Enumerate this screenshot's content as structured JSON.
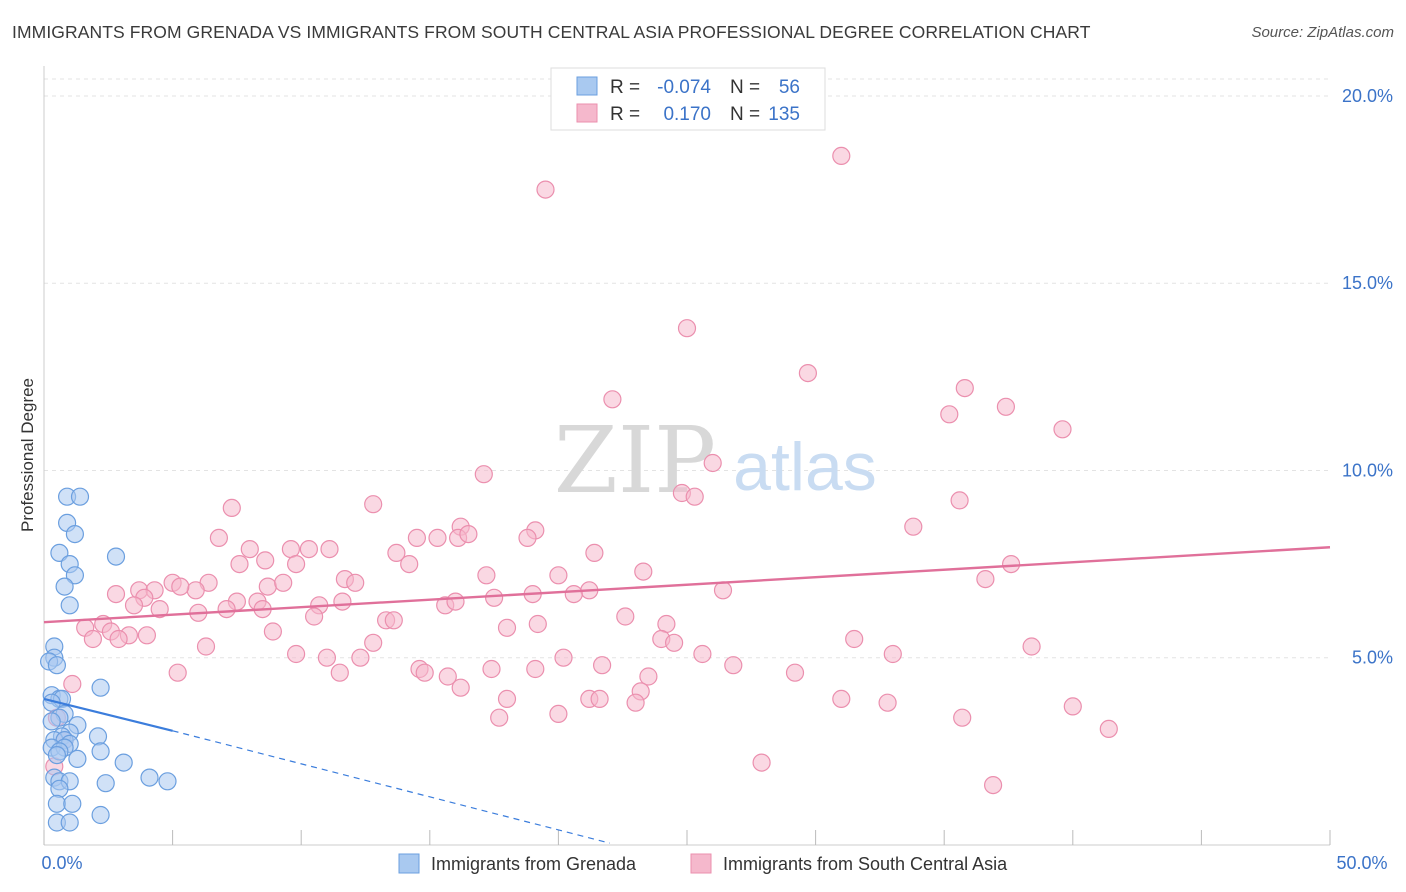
{
  "header": {
    "title": "IMMIGRANTS FROM GRENADA VS IMMIGRANTS FROM SOUTH CENTRAL ASIA PROFESSIONAL DEGREE CORRELATION CHART",
    "source": "Source: ZipAtlas.com"
  },
  "watermark": {
    "zip": "ZIP",
    "atlas": "atlas"
  },
  "legend_box": {
    "rows": [
      {
        "r_label": "R =",
        "r_value": "-0.074",
        "n_label": "N =",
        "n_value": "56"
      },
      {
        "r_label": "R =",
        "r_value": "0.170",
        "n_label": "N =",
        "n_value": "135"
      }
    ]
  },
  "bottom_legend": {
    "items": [
      {
        "label": "Immigrants from Grenada"
      },
      {
        "label": "Immigrants from South Central Asia"
      }
    ]
  },
  "colors": {
    "blue_fill": "#a9c9f0",
    "blue_stroke": "#6b9fdf",
    "blue_line": "#3b7ddc",
    "pink_fill": "#f5b8cc",
    "pink_stroke": "#eb8fae",
    "pink_line": "#e0709a",
    "axis_value": "#3b73c8",
    "grid": "#e3e3e3"
  },
  "chart_data": {
    "type": "scatter",
    "title": "IMMIGRANTS FROM GRENADA VS IMMIGRANTS FROM SOUTH CENTRAL ASIA PROFESSIONAL DEGREE CORRELATION CHART",
    "xlabel": "",
    "ylabel": "Professional Degree",
    "xlim": [
      0,
      50
    ],
    "ylim": [
      0,
      20.8
    ],
    "x_tick_labels": [
      "0.0%",
      "50.0%"
    ],
    "y_ticks": [
      5,
      10,
      15,
      20
    ],
    "y_tick_labels": [
      "5.0%",
      "10.0%",
      "15.0%",
      "20.0%"
    ],
    "grid": true,
    "legend_position": "top-center",
    "series": [
      {
        "name": "Immigrants from Grenada",
        "R": -0.074,
        "N": 56,
        "trend": {
          "x0": 0,
          "y0": 3.9,
          "x1": 5.0,
          "y1": 3.05,
          "dashed_to_x": 22.0,
          "dashed_to_y": 0.05
        },
        "points": [
          [
            0.9,
            9.3
          ],
          [
            1.4,
            9.3
          ],
          [
            0.9,
            8.6
          ],
          [
            1.2,
            8.3
          ],
          [
            0.6,
            7.8
          ],
          [
            2.8,
            7.7
          ],
          [
            1.0,
            7.5
          ],
          [
            1.2,
            7.2
          ],
          [
            0.8,
            6.9
          ],
          [
            1.0,
            6.4
          ],
          [
            0.4,
            5.3
          ],
          [
            0.4,
            5.0
          ],
          [
            0.2,
            4.9
          ],
          [
            0.5,
            4.8
          ],
          [
            2.2,
            4.2
          ],
          [
            0.3,
            4.0
          ],
          [
            0.6,
            3.9
          ],
          [
            0.7,
            3.9
          ],
          [
            0.3,
            3.8
          ],
          [
            0.8,
            3.5
          ],
          [
            0.6,
            3.4
          ],
          [
            0.3,
            3.3
          ],
          [
            1.3,
            3.2
          ],
          [
            1.0,
            3.0
          ],
          [
            2.1,
            2.9
          ],
          [
            0.7,
            2.9
          ],
          [
            0.4,
            2.8
          ],
          [
            0.8,
            2.8
          ],
          [
            1.0,
            2.7
          ],
          [
            0.3,
            2.6
          ],
          [
            0.8,
            2.6
          ],
          [
            0.6,
            2.5
          ],
          [
            2.2,
            2.5
          ],
          [
            0.5,
            2.4
          ],
          [
            1.3,
            2.3
          ],
          [
            3.1,
            2.2
          ],
          [
            0.4,
            1.8
          ],
          [
            0.6,
            1.7
          ],
          [
            1.0,
            1.7
          ],
          [
            4.1,
            1.8
          ],
          [
            4.8,
            1.7
          ],
          [
            2.4,
            1.65
          ],
          [
            0.6,
            1.5
          ],
          [
            0.5,
            1.1
          ],
          [
            1.1,
            1.1
          ],
          [
            2.2,
            0.8
          ],
          [
            0.5,
            0.6
          ],
          [
            1.0,
            0.6
          ]
        ]
      },
      {
        "name": "Immigrants from South Central Asia",
        "R": 0.17,
        "N": 135,
        "trend": {
          "x0": 0,
          "y0": 5.95,
          "x1": 50,
          "y1": 7.95
        },
        "points": [
          [
            31.0,
            18.4
          ],
          [
            19.5,
            17.5
          ],
          [
            25.0,
            13.8
          ],
          [
            29.7,
            12.6
          ],
          [
            35.8,
            12.2
          ],
          [
            22.1,
            11.9
          ],
          [
            37.4,
            11.7
          ],
          [
            35.2,
            11.5
          ],
          [
            39.6,
            11.1
          ],
          [
            26.0,
            10.2
          ],
          [
            17.1,
            9.9
          ],
          [
            24.8,
            9.4
          ],
          [
            25.3,
            9.3
          ],
          [
            35.6,
            9.2
          ],
          [
            7.3,
            9.0
          ],
          [
            12.8,
            9.1
          ],
          [
            16.2,
            8.5
          ],
          [
            33.8,
            8.5
          ],
          [
            19.1,
            8.4
          ],
          [
            6.8,
            8.2
          ],
          [
            14.5,
            8.2
          ],
          [
            15.3,
            8.2
          ],
          [
            16.1,
            8.2
          ],
          [
            18.8,
            8.2
          ],
          [
            16.5,
            8.3
          ],
          [
            8.0,
            7.9
          ],
          [
            9.6,
            7.9
          ],
          [
            10.3,
            7.9
          ],
          [
            11.1,
            7.9
          ],
          [
            13.7,
            7.8
          ],
          [
            21.4,
            7.8
          ],
          [
            7.6,
            7.5
          ],
          [
            8.6,
            7.6
          ],
          [
            9.8,
            7.5
          ],
          [
            14.2,
            7.5
          ],
          [
            20.0,
            7.2
          ],
          [
            23.3,
            7.3
          ],
          [
            37.6,
            7.5
          ],
          [
            17.2,
            7.2
          ],
          [
            11.7,
            7.1
          ],
          [
            6.4,
            7.0
          ],
          [
            8.7,
            6.9
          ],
          [
            9.3,
            7.0
          ],
          [
            12.1,
            7.0
          ],
          [
            5.0,
            7.0
          ],
          [
            5.9,
            6.8
          ],
          [
            5.3,
            6.9
          ],
          [
            3.7,
            6.8
          ],
          [
            4.3,
            6.8
          ],
          [
            2.8,
            6.7
          ],
          [
            3.9,
            6.6
          ],
          [
            19.0,
            6.7
          ],
          [
            21.2,
            6.8
          ],
          [
            26.4,
            6.8
          ],
          [
            36.6,
            7.1
          ],
          [
            17.5,
            6.6
          ],
          [
            20.6,
            6.7
          ],
          [
            7.5,
            6.5
          ],
          [
            8.3,
            6.5
          ],
          [
            10.7,
            6.4
          ],
          [
            11.6,
            6.5
          ],
          [
            15.6,
            6.4
          ],
          [
            16.0,
            6.5
          ],
          [
            3.5,
            6.4
          ],
          [
            4.5,
            6.3
          ],
          [
            6.0,
            6.2
          ],
          [
            7.1,
            6.3
          ],
          [
            8.5,
            6.3
          ],
          [
            10.5,
            6.1
          ],
          [
            13.3,
            6.0
          ],
          [
            13.6,
            6.0
          ],
          [
            22.6,
            6.1
          ],
          [
            24.2,
            5.9
          ],
          [
            19.2,
            5.9
          ],
          [
            2.3,
            5.9
          ],
          [
            1.6,
            5.8
          ],
          [
            2.6,
            5.7
          ],
          [
            3.3,
            5.6
          ],
          [
            8.9,
            5.7
          ],
          [
            18.0,
            5.8
          ],
          [
            1.9,
            5.5
          ],
          [
            2.9,
            5.5
          ],
          [
            4.0,
            5.6
          ],
          [
            24.0,
            5.5
          ],
          [
            24.5,
            5.4
          ],
          [
            31.5,
            5.5
          ],
          [
            38.4,
            5.3
          ],
          [
            12.8,
            5.4
          ],
          [
            6.3,
            5.3
          ],
          [
            9.8,
            5.1
          ],
          [
            11.0,
            5.0
          ],
          [
            12.3,
            5.0
          ],
          [
            20.2,
            5.0
          ],
          [
            25.6,
            5.1
          ],
          [
            33.0,
            5.1
          ],
          [
            21.7,
            4.8
          ],
          [
            26.8,
            4.8
          ],
          [
            29.2,
            4.6
          ],
          [
            14.6,
            4.7
          ],
          [
            17.4,
            4.7
          ],
          [
            19.1,
            4.7
          ],
          [
            11.5,
            4.6
          ],
          [
            14.8,
            4.6
          ],
          [
            5.2,
            4.6
          ],
          [
            15.7,
            4.5
          ],
          [
            23.5,
            4.5
          ],
          [
            1.1,
            4.3
          ],
          [
            16.2,
            4.2
          ],
          [
            23.2,
            4.1
          ],
          [
            21.2,
            3.9
          ],
          [
            21.6,
            3.9
          ],
          [
            31.0,
            3.9
          ],
          [
            23.0,
            3.8
          ],
          [
            32.8,
            3.8
          ],
          [
            40.0,
            3.7
          ],
          [
            18.0,
            3.9
          ],
          [
            20.0,
            3.5
          ],
          [
            17.7,
            3.4
          ],
          [
            35.7,
            3.4
          ],
          [
            41.4,
            3.1
          ],
          [
            0.5,
            3.4
          ],
          [
            0.8,
            2.8
          ],
          [
            0.4,
            2.1
          ],
          [
            27.9,
            2.2
          ],
          [
            36.9,
            1.6
          ]
        ]
      }
    ]
  }
}
